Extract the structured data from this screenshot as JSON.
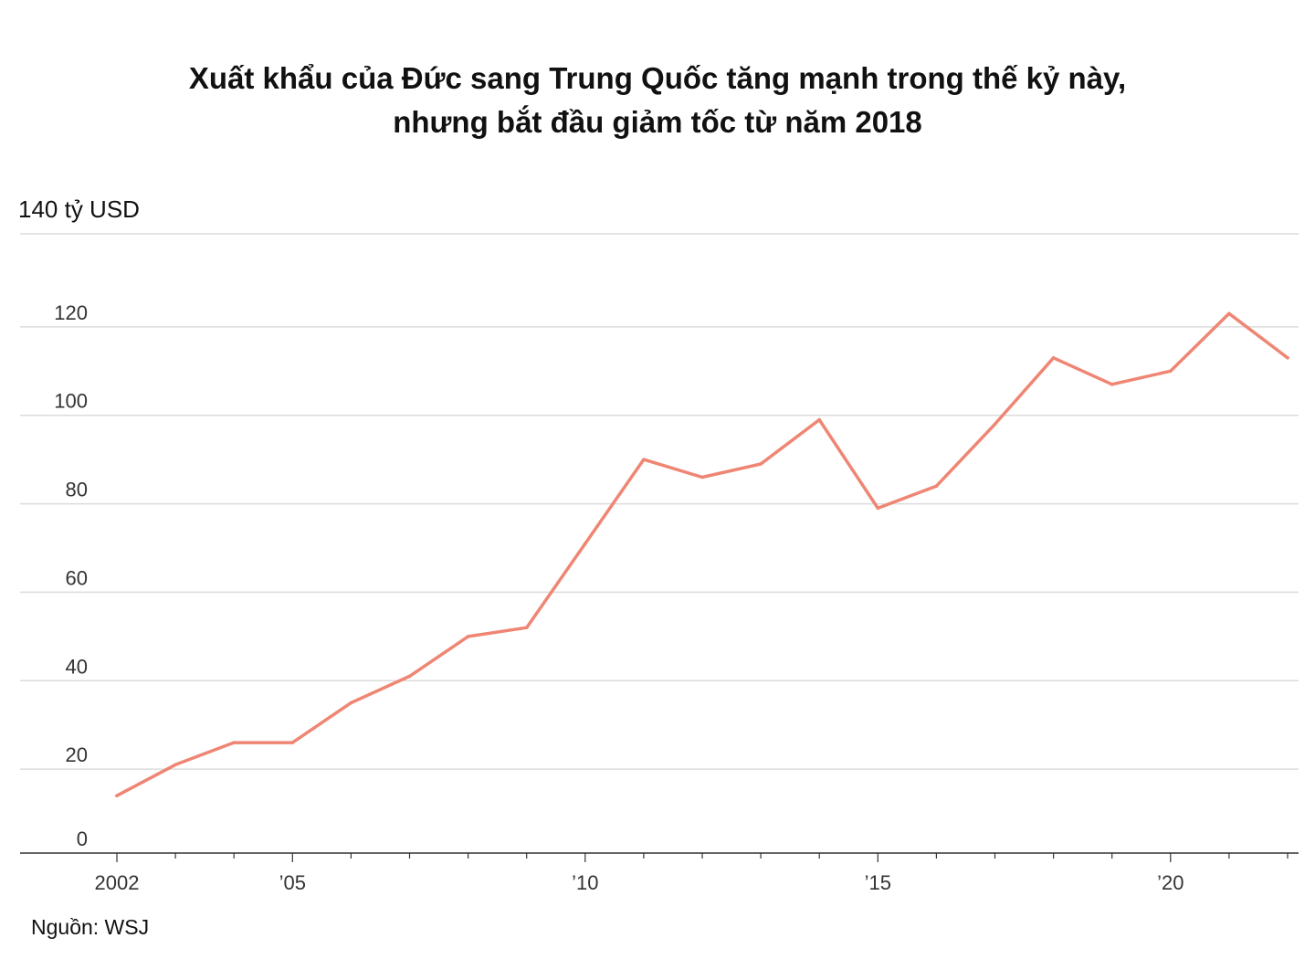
{
  "title_line1": "Xuất khẩu của Đức sang Trung Quốc tăng mạnh trong thế kỷ này,",
  "title_line2": "nhưng bắt đầu giảm tốc từ năm 2018",
  "source": "Nguồn: WSJ",
  "colors": {
    "line": "#ef8674",
    "grid": "#dcdcdc",
    "axis": "#333333"
  },
  "chart_data": {
    "type": "line",
    "ylabel": "140 tỷ USD",
    "ylim": [
      0,
      140
    ],
    "yticks": [
      0,
      20,
      40,
      60,
      80,
      100,
      120
    ],
    "xlim": [
      2002,
      2022
    ],
    "xticks": [
      {
        "value": 2002,
        "label": "2002"
      },
      {
        "value": 2005,
        "label": "’05"
      },
      {
        "value": 2010,
        "label": "’10"
      },
      {
        "value": 2015,
        "label": "’15"
      },
      {
        "value": 2020,
        "label": "’20"
      }
    ],
    "grid": true,
    "x": [
      2002,
      2003,
      2004,
      2005,
      2006,
      2007,
      2008,
      2009,
      2010,
      2011,
      2012,
      2013,
      2014,
      2015,
      2016,
      2017,
      2018,
      2019,
      2020,
      2021,
      2022
    ],
    "series": [
      {
        "values": [
          14,
          21,
          26,
          26,
          35,
          41,
          50,
          52,
          71,
          90,
          86,
          89,
          99,
          79,
          84,
          98,
          113,
          107,
          110,
          123,
          113
        ]
      }
    ]
  }
}
